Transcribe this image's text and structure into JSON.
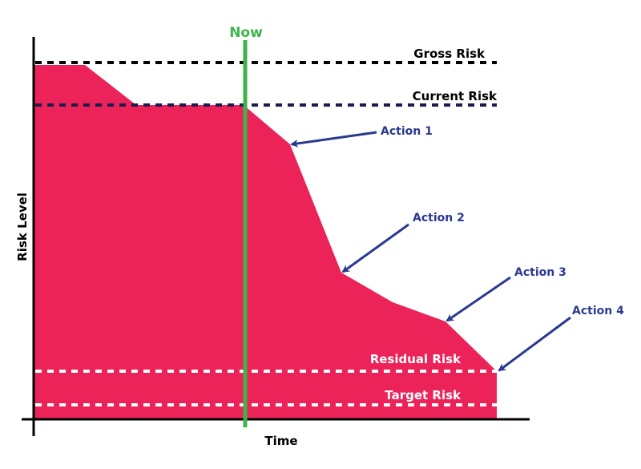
{
  "colors": {
    "area": "#ec2359",
    "now": "#3bb54a",
    "action": "#2b3990",
    "gross": "#000000",
    "current": "#1e1b4f",
    "lower": "#ffffff"
  },
  "axes": {
    "xlabel": "Time",
    "ylabel": "Risk Level"
  },
  "now_label": "Now",
  "levels": {
    "gross": "Gross Risk",
    "current": "Current Risk",
    "residual": "Residual Risk",
    "target": "Target Risk"
  },
  "actions": [
    "Action 1",
    "Action 2",
    "Action 3",
    "Action 4"
  ]
}
